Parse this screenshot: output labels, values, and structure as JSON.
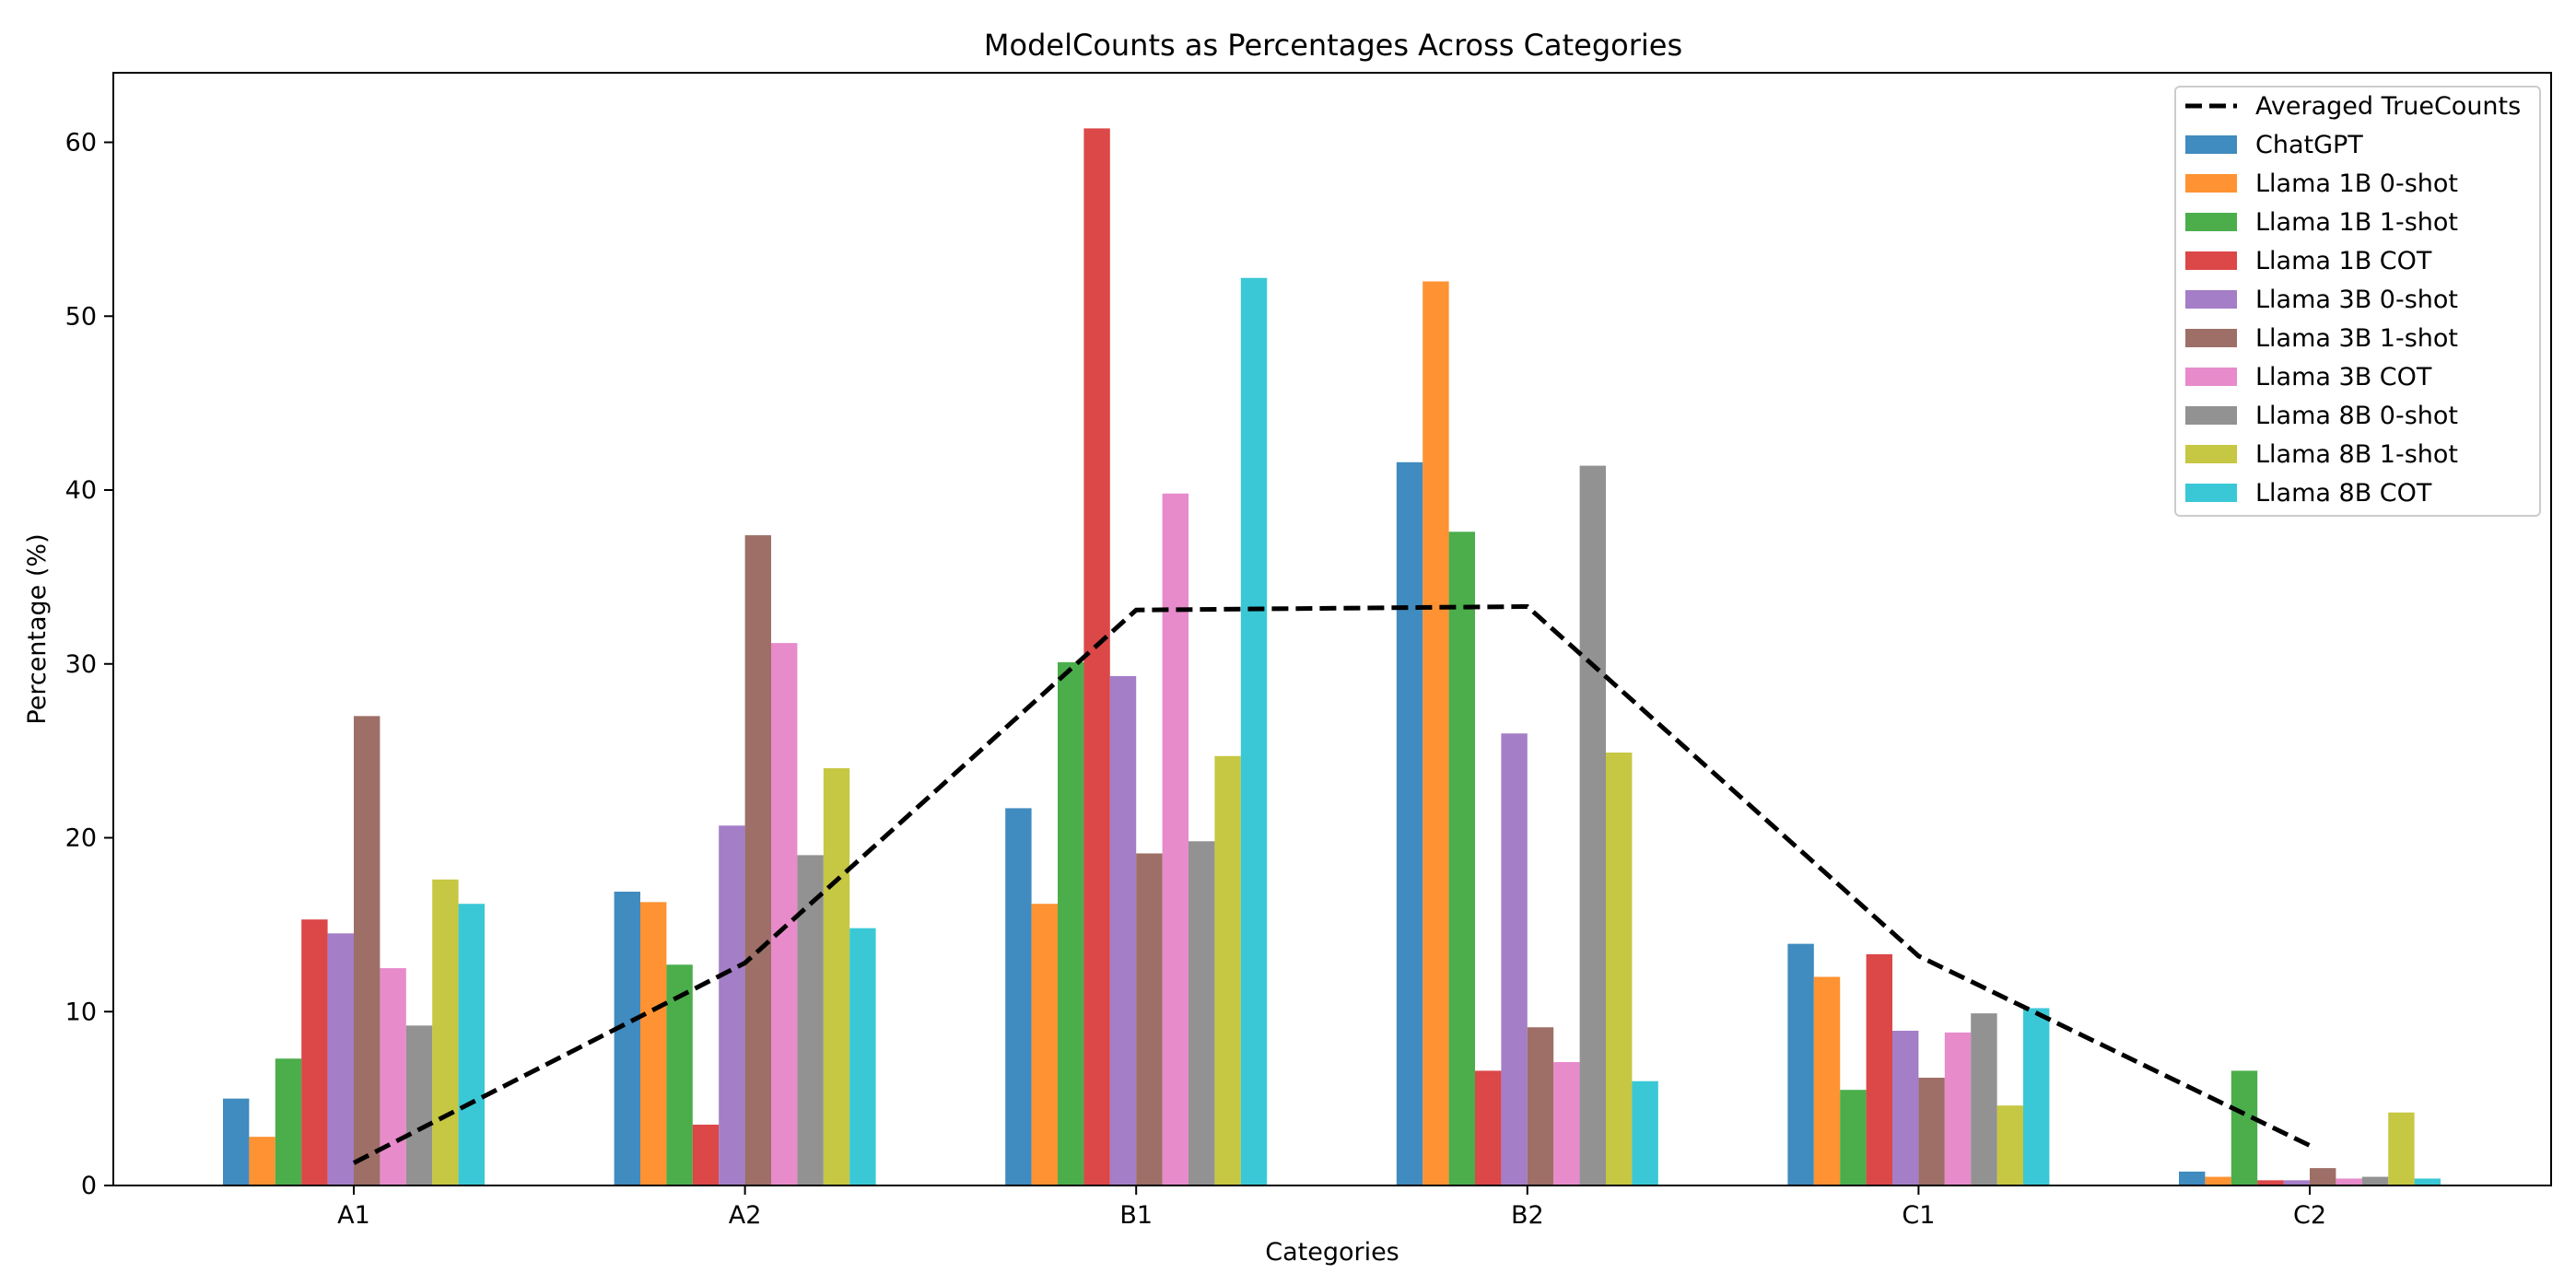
{
  "chart_data": {
    "type": "bar",
    "title": "ModelCounts as Percentages Across Categories",
    "xlabel": "Categories",
    "ylabel": "Percentage (%)",
    "ylim": [
      0,
      64
    ],
    "yticks": [
      "0",
      "10",
      "20",
      "30",
      "40",
      "50",
      "60"
    ],
    "categories": [
      "A1",
      "A2",
      "B1",
      "B2",
      "C1",
      "C2"
    ],
    "grid": false,
    "legend_position": "top-right",
    "series": [
      {
        "name": "ChatGPT",
        "color": "#1f77b4",
        "values": [
          5.0,
          16.9,
          21.7,
          41.6,
          13.9,
          0.8
        ]
      },
      {
        "name": "Llama 1B 0-shot",
        "color": "#ff7f0e",
        "values": [
          2.8,
          16.3,
          16.2,
          52.0,
          12.0,
          0.5
        ]
      },
      {
        "name": "Llama 1B 1-shot",
        "color": "#2ca02c",
        "values": [
          7.3,
          12.7,
          30.1,
          37.6,
          5.5,
          6.6
        ]
      },
      {
        "name": "Llama 1B COT",
        "color": "#d62728",
        "values": [
          15.3,
          3.5,
          60.8,
          6.6,
          13.3,
          0.3
        ]
      },
      {
        "name": "Llama 3B 0-shot",
        "color": "#9467bd",
        "values": [
          14.5,
          20.7,
          29.3,
          26.0,
          8.9,
          0.3
        ]
      },
      {
        "name": "Llama 3B 1-shot",
        "color": "#8c564b",
        "values": [
          27.0,
          37.4,
          19.1,
          9.1,
          6.2,
          1.0
        ]
      },
      {
        "name": "Llama 3B COT",
        "color": "#e377c2",
        "values": [
          12.5,
          31.2,
          39.8,
          7.1,
          8.8,
          0.4
        ]
      },
      {
        "name": "Llama 8B 0-shot",
        "color": "#7f7f7f",
        "values": [
          9.2,
          19.0,
          19.8,
          41.4,
          9.9,
          0.5
        ]
      },
      {
        "name": "Llama 8B 1-shot",
        "color": "#bcbd22",
        "values": [
          17.6,
          24.0,
          24.7,
          24.9,
          4.6,
          4.2
        ]
      },
      {
        "name": "Llama 8B COT",
        "color": "#17becf",
        "values": [
          16.2,
          14.8,
          52.2,
          6.0,
          10.2,
          0.4
        ]
      }
    ],
    "line_series": {
      "name": "Averaged TrueCounts",
      "color": "#000000",
      "style": "dashed",
      "values": [
        1.3,
        12.8,
        33.1,
        33.3,
        13.2,
        2.3
      ]
    }
  }
}
